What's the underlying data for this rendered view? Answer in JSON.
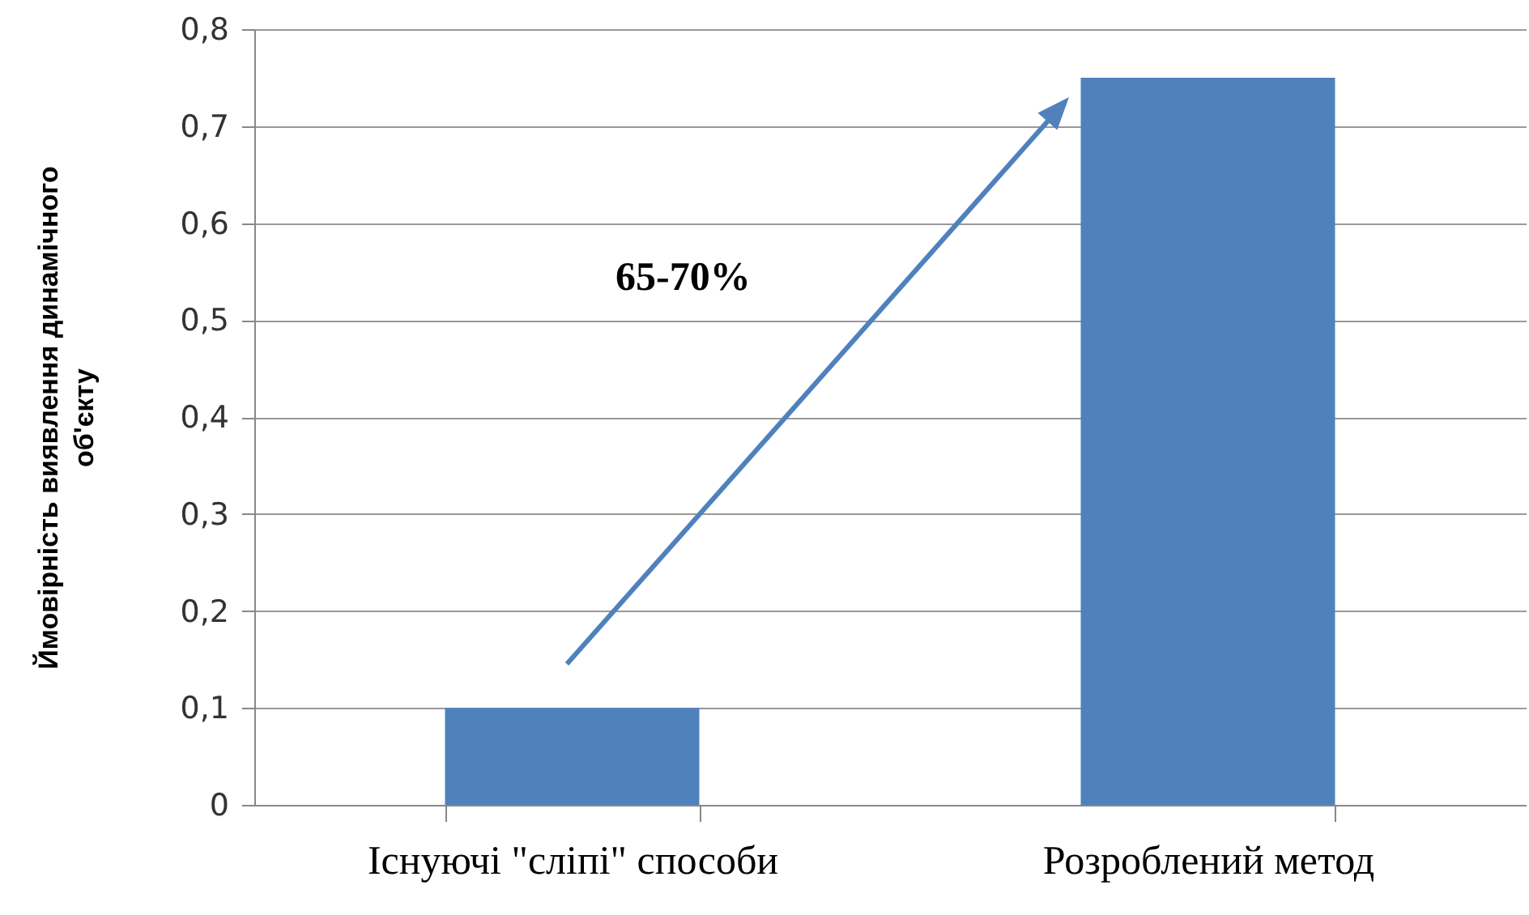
{
  "chart_data": {
    "type": "bar",
    "ylabel": "Ймовірність виявлення динамічного\nоб'єкту",
    "categories": [
      "Існуючі \"сліпі\" способи",
      "Розроблений метод"
    ],
    "values": [
      0.1,
      0.75
    ],
    "color": "#4f81bd",
    "ylim": [
      0,
      0.8
    ],
    "yticks": [
      0,
      {
        "value": 0.1,
        "label": "0,1"
      },
      {
        "value": 0.2,
        "label": "0,2"
      },
      {
        "value": 0.3,
        "label": "0,3"
      },
      {
        "value": 0.4,
        "label": "0,4"
      },
      {
        "value": 0.5,
        "label": "0,5"
      },
      {
        "value": 0.6,
        "label": "0,6"
      },
      {
        "value": 0.7,
        "label": "0,7"
      },
      {
        "value": 0.8,
        "label": "0,8"
      }
    ],
    "grid": "y",
    "annotations": [
      "65-70%"
    ]
  }
}
